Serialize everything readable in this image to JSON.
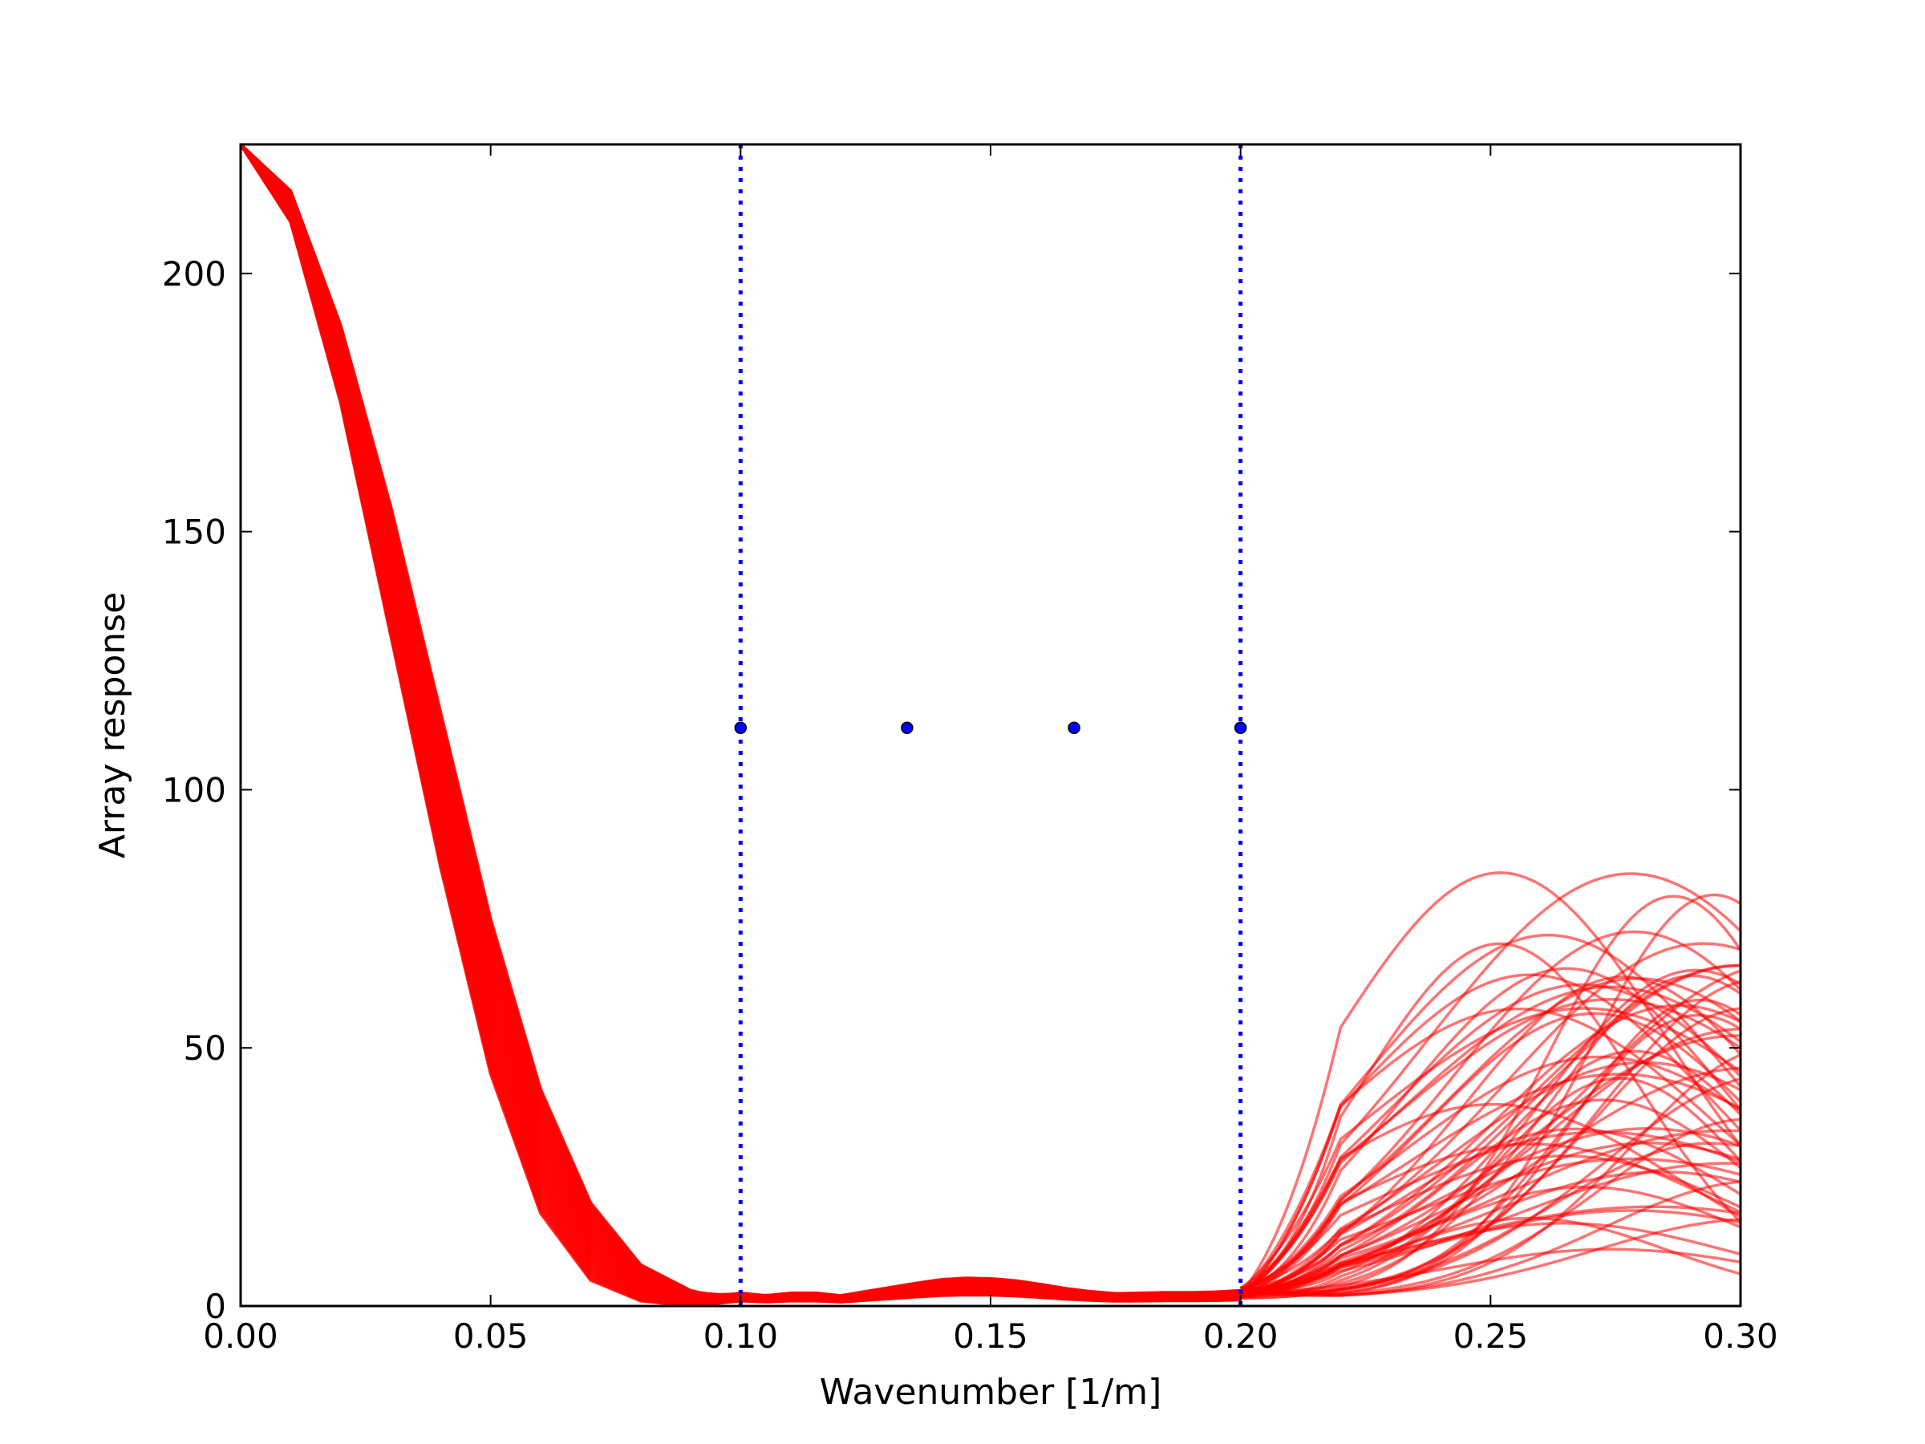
{
  "chart_data": {
    "type": "line",
    "title": "",
    "xlabel": "Wavenumber [1/m]",
    "ylabel": "Array response",
    "xlim": [
      0.0,
      0.3
    ],
    "ylim": [
      0,
      225
    ],
    "x_ticks": [
      0.0,
      0.05,
      0.1,
      0.15,
      0.2,
      0.25,
      0.3
    ],
    "x_tick_labels": [
      "0.00",
      "0.05",
      "0.10",
      "0.15",
      "0.20",
      "0.25",
      "0.30"
    ],
    "y_ticks": [
      0,
      50,
      100,
      150,
      200
    ],
    "y_tick_labels": [
      "0",
      "50",
      "100",
      "150",
      "200"
    ],
    "grid": false,
    "series_color": "#ff0000",
    "marker_color": "#0000ff",
    "main_lobe_band": {
      "x": [
        0.0,
        0.01,
        0.02,
        0.03,
        0.04,
        0.05,
        0.06,
        0.07,
        0.08,
        0.09,
        0.1
      ],
      "upper": [
        225,
        216,
        190,
        155,
        115,
        75,
        42,
        20,
        8,
        3,
        1
      ],
      "lower": [
        225,
        210,
        175,
        130,
        85,
        45,
        18,
        5,
        1,
        0,
        0
      ]
    },
    "sidelobe_floor": {
      "x": [
        0.1,
        0.105,
        0.11,
        0.115,
        0.12,
        0.125,
        0.13,
        0.135,
        0.14,
        0.145,
        0.15,
        0.155,
        0.16,
        0.165,
        0.17,
        0.175,
        0.18,
        0.185,
        0.19,
        0.195,
        0.2
      ],
      "values": [
        2.5,
        2.0,
        2.5,
        2.5,
        2.0,
        2.8,
        3.6,
        4.4,
        5.1,
        5.4,
        5.3,
        4.9,
        4.2,
        3.4,
        2.8,
        2.4,
        2.5,
        2.6,
        2.6,
        2.7,
        3.0
      ]
    },
    "grating_lobes": {
      "x_start": 0.2,
      "x_end": 0.3,
      "count": 60,
      "peak_min": 3,
      "peak_max": 84,
      "peak_x_min": 0.25,
      "peak_x_max": 0.31
    },
    "vertical_lines": [
      {
        "x": 0.1,
        "style": "dotted"
      },
      {
        "x": 0.2,
        "style": "dotted"
      }
    ],
    "points": [
      {
        "x": 0.1,
        "y": 112
      },
      {
        "x": 0.1333,
        "y": 112
      },
      {
        "x": 0.1667,
        "y": 112
      },
      {
        "x": 0.2,
        "y": 112
      }
    ]
  }
}
